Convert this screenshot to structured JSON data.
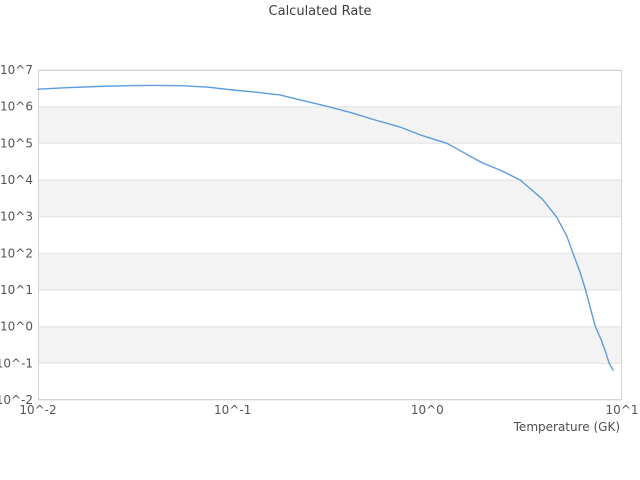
{
  "page": {
    "title": "Calculated Rate"
  },
  "chart_data": {
    "type": "line",
    "title": "Calculated Rate",
    "xlabel": "Temperature (GK)",
    "ylabel": "",
    "x_scale": "log",
    "y_scale": "log",
    "xlim": [
      0.01,
      10
    ],
    "ylim": [
      0.01,
      10000000.0
    ],
    "grid": "horizontal-decade-lines-with-alternating-bands",
    "legend": "none",
    "x_tick_values": [
      0.01,
      0.1,
      1,
      10
    ],
    "x_tick_labels": [
      "10^-2",
      "10^-1",
      "10^0",
      "10^1"
    ],
    "y_tick_values": [
      10000000.0,
      1000000.0,
      100000.0,
      10000.0,
      1000.0,
      100.0,
      10,
      1,
      0.1,
      0.01
    ],
    "y_tick_labels": [
      "10^7",
      "10^6",
      "10^5",
      "10^4",
      "10^3",
      "10^2",
      "10^1",
      "10^0",
      "10^-1",
      "10^-2"
    ],
    "colors": {
      "line": "#5b9ce0",
      "band": "#f3f3f3",
      "gridline": "#e2e2e2",
      "border": "#d5d5d5",
      "tick_text": "#555555",
      "title_text": "#3d3d3d",
      "background": "#ffffff"
    },
    "series": [
      {
        "name": "Calculated Rate",
        "points": [
          [
            0.01,
            3000000.0
          ],
          [
            0.014,
            3300000.0
          ],
          [
            0.02,
            3550000.0
          ],
          [
            0.03,
            3750000.0
          ],
          [
            0.04,
            3800000.0
          ],
          [
            0.055,
            3720000.0
          ],
          [
            0.075,
            3400000.0
          ],
          [
            0.1,
            2850000.0
          ],
          [
            0.13,
            2500000.0
          ],
          [
            0.175,
            2100000.0
          ],
          [
            0.22,
            1550000.0
          ],
          [
            0.3,
            1050000.0
          ],
          [
            0.4,
            700000.0
          ],
          [
            0.55,
            420000.0
          ],
          [
            0.72,
            280000.0
          ],
          [
            0.92,
            170000.0
          ],
          [
            1.26,
            100000.0
          ],
          [
            1.9,
            30000.0
          ],
          [
            2.4,
            18000.0
          ],
          [
            3.0,
            10000.0
          ],
          [
            3.9,
            3000.0
          ],
          [
            4.6,
            1000.0
          ],
          [
            5.2,
            300.0
          ],
          [
            5.6,
            100.0
          ],
          [
            6.1,
            30.0
          ],
          [
            6.5,
            10.0
          ],
          [
            6.9,
            3.0
          ],
          [
            7.3,
            1.0
          ],
          [
            7.8,
            0.45
          ],
          [
            8.2,
            0.22
          ],
          [
            8.6,
            0.1
          ],
          [
            9.0,
            0.065
          ]
        ]
      }
    ]
  }
}
